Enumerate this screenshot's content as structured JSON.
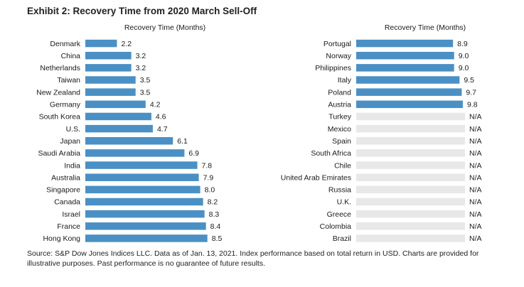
{
  "title": "Exhibit 2: Recovery Time from 2020 March Sell-Off",
  "source_note": "Source: S&P Dow Jones Indices LLC. Data as of Jan. 13, 2021. Index performance based on total return in USD. Charts are provided for illustrative purposes. Past performance is no guarantee of future results.",
  "colors": {
    "bar": "#4a90c4",
    "na_bar": "#e8e8e8",
    "text": "#1a1a1a"
  },
  "chart_data": [
    {
      "type": "bar",
      "orientation": "horizontal",
      "title": "Recovery Time (Months)",
      "xlabel": "Recovery Time (Months)",
      "xlim": [
        0,
        10
      ],
      "categories": [
        "Denmark",
        "China",
        "Netherlands",
        "Taiwan",
        "New Zealand",
        "Germany",
        "South Korea",
        "U.S.",
        "Japan",
        "Saudi Arabia",
        "India",
        "Australia",
        "Singapore",
        "Canada",
        "Israel",
        "France",
        "Hong Kong"
      ],
      "values": [
        2.2,
        3.2,
        3.2,
        3.5,
        3.5,
        4.2,
        4.6,
        4.7,
        6.1,
        6.9,
        7.8,
        7.9,
        8.0,
        8.2,
        8.3,
        8.4,
        8.5
      ],
      "labels": [
        "2.2",
        "3.2",
        "3.2",
        "3.5",
        "3.5",
        "4.2",
        "4.6",
        "4.7",
        "6.1",
        "6.9",
        "7.8",
        "7.9",
        "8.0",
        "8.2",
        "8.3",
        "8.4",
        "8.5"
      ]
    },
    {
      "type": "bar",
      "orientation": "horizontal",
      "title": "Recovery Time (Months)",
      "xlabel": "Recovery Time (Months)",
      "xlim": [
        0,
        10
      ],
      "na_text": "N/A",
      "categories": [
        "Portugal",
        "Norway",
        "Philippines",
        "Italy",
        "Poland",
        "Austria",
        "Turkey",
        "Mexico",
        "Spain",
        "South Africa",
        "Chile",
        "United Arab Emirates",
        "Russia",
        "U.K.",
        "Greece",
        "Colombia",
        "Brazil"
      ],
      "values": [
        8.9,
        9.0,
        9.0,
        9.5,
        9.7,
        9.8,
        null,
        null,
        null,
        null,
        null,
        null,
        null,
        null,
        null,
        null,
        null
      ],
      "labels": [
        "8.9",
        "9.0",
        "9.0",
        "9.5",
        "9.7",
        "9.8",
        "N/A",
        "N/A",
        "N/A",
        "N/A",
        "N/A",
        "N/A",
        "N/A",
        "N/A",
        "N/A",
        "N/A",
        "N/A"
      ]
    }
  ]
}
